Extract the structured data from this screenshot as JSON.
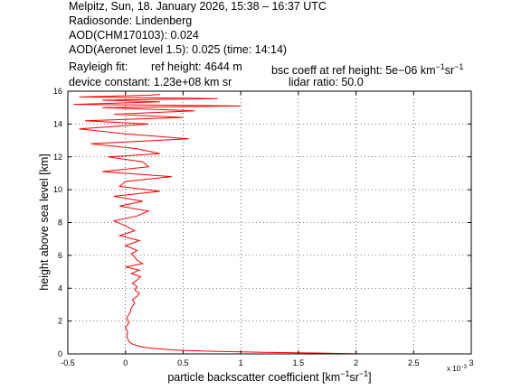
{
  "header": {
    "line1": "Melpitz, Sun, 18. January 2026, 15:38 – 16:37 UTC",
    "line2": "Radiosonde: Lindenberg",
    "line3": "AOD(CHM170103): 0.024",
    "line4": "AOD(Aeronet level 1.5): 0.025   (time: 14:14)",
    "rayleigh_label": "Rayleigh fit:",
    "ref_height": "ref height: 4644 m",
    "bsc_coeff_prefix": "bsc coeff at ref height: 5e−06 km",
    "device_constant_prefix": "device constant: 1.23e+08 km sr",
    "lidar_ratio": "lidar ratio: 50.0"
  },
  "chart_data": {
    "type": "line",
    "xlabel_prefix": "particle backscatter coefficient [km",
    "xlabel_mid": "sr",
    "xlabel_suffix": "]",
    "superscript": "−1",
    "ylabel": "height above sea level [km]",
    "x_multiplier": "x 10",
    "x_multiplier_exp": "−3",
    "xlim": [
      -0.5,
      3
    ],
    "ylim": [
      0,
      16
    ],
    "xticks": [
      "-0.5",
      "0",
      "0.5",
      "1",
      "1.5",
      "2",
      "2.5",
      "3"
    ],
    "yticks": [
      "0",
      "2",
      "4",
      "6",
      "8",
      "10",
      "12",
      "14",
      "16"
    ],
    "grid": true,
    "series_color": "#ff0000",
    "series": [
      {
        "x": [
          2.05,
          1.7,
          1.2,
          0.8,
          0.55,
          0.4,
          0.3,
          0.22,
          0.15,
          0.1,
          0.06,
          0.03,
          0.02,
          0.01,
          0.02,
          0.0,
          0.03,
          0.01,
          0.04,
          0.05,
          0.08,
          0.06,
          0.1,
          0.12,
          0.08,
          0.1,
          0.06,
          0.1,
          0.13,
          0.05,
          0.12,
          0.0,
          0.15,
          0.1,
          0.08,
          0.05,
          0.1,
          0.0,
          0.12,
          -0.05,
          0.08,
          0.0,
          -0.1,
          0.1,
          0.2,
          -0.05,
          0.15,
          -0.1,
          0.3,
          -0.05,
          0.0,
          0.4,
          -0.2,
          0.2,
          0.15,
          -0.15,
          0.3,
          0.1,
          -0.3,
          0.55,
          0.0,
          -0.4,
          0.2,
          -0.35,
          0.5,
          -0.1,
          0.6,
          -0.2,
          1.0,
          -0.45,
          0.3,
          -0.2,
          0.8,
          -0.4,
          0.2,
          0.3
        ],
        "y": [
          0.0,
          0.05,
          0.1,
          0.15,
          0.2,
          0.25,
          0.3,
          0.35,
          0.42,
          0.5,
          0.6,
          0.75,
          0.9,
          1.1,
          1.3,
          1.6,
          1.9,
          2.2,
          2.5,
          2.8,
          3.1,
          3.3,
          3.5,
          3.7,
          3.9,
          4.1,
          4.3,
          4.5,
          4.7,
          4.9,
          5.1,
          5.3,
          5.5,
          5.7,
          5.9,
          6.1,
          6.3,
          6.6,
          6.9,
          7.2,
          7.5,
          7.8,
          8.1,
          8.4,
          8.7,
          9.0,
          9.3,
          9.6,
          9.9,
          10.2,
          10.5,
          10.8,
          11.1,
          11.4,
          11.7,
          12.0,
          12.2,
          12.5,
          12.8,
          13.1,
          13.4,
          13.7,
          14.0,
          14.2,
          14.4,
          14.6,
          14.8,
          15.0,
          15.1,
          15.2,
          15.35,
          15.45,
          15.55,
          15.65,
          15.75,
          15.8
        ]
      }
    ]
  }
}
